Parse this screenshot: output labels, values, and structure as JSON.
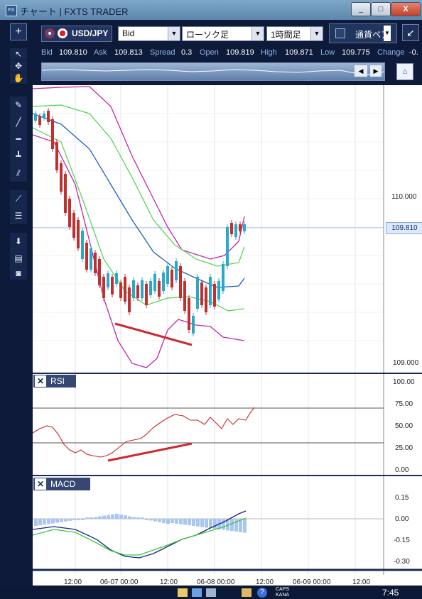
{
  "window": {
    "title": "チャート | FXTS TRADER",
    "app_icon": "FX",
    "buttons": [
      "_",
      "□",
      "X"
    ]
  },
  "toolbar": {
    "add_label": "+",
    "symbol": "USD/JPY",
    "price_type": "Bid",
    "chart_type": "ローソク足",
    "interval": "1時間足",
    "currency_pair_button": "通貨ペア",
    "expand_icon": "↙"
  },
  "quote": {
    "bid_label": "Bid",
    "bid": "109.810",
    "ask_label": "Ask",
    "ask": "109.813",
    "spread_label": "Spread",
    "spread": "0.3",
    "open_label": "Open",
    "open": "109.819",
    "high_label": "High",
    "high": "109.871",
    "low_label": "Low",
    "low": "109.775",
    "change_label": "Change",
    "change": "-0."
  },
  "price_axis": {
    "labels": [
      "110.000",
      "109.000"
    ],
    "current": "109.810",
    "current_color": "#dbe9ff"
  },
  "rsi": {
    "label": "RSI",
    "axis": [
      "100.00",
      "75.00",
      "50.00",
      "25.00",
      "0.00"
    ]
  },
  "macd": {
    "label": "MACD",
    "axis": [
      "0.15",
      "0.00",
      "-0.15",
      "-0.30"
    ]
  },
  "time_axis": {
    "labels": [
      "12:00",
      "06-07 00:00",
      "12:00",
      "06-08 00:00",
      "12:00",
      "06-09 00:00",
      "12:00"
    ]
  },
  "taskbar": {
    "caps": "CAPS",
    "kana": "KANA",
    "clock": "7:45"
  },
  "colors": {
    "bull_candle": "#2aa8c8",
    "bear_candle": "#c03030",
    "bollinger_outer": "#c026a8",
    "bollinger_inner": "#4cd34c",
    "moving_average": "#1c5fbf",
    "rsi_line": "#c62828",
    "macd_line": "#1a237e",
    "signal_line": "#39c839",
    "histogram": "#a9c6f2",
    "divergence_line": "#d0282f"
  }
}
